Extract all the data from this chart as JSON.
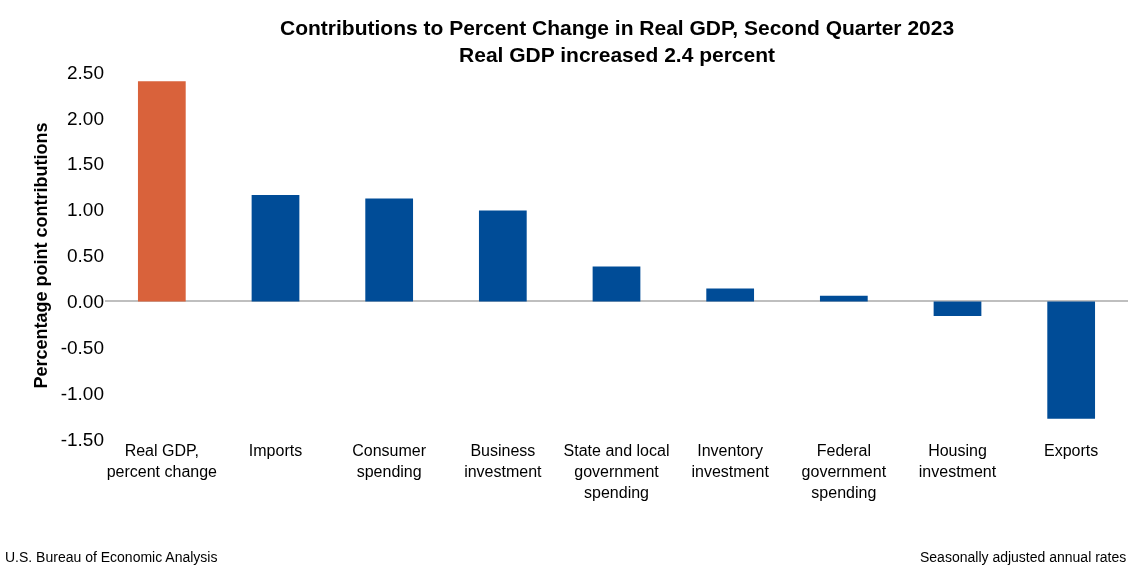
{
  "chart_data": {
    "type": "bar",
    "title": "Contributions to Percent Change in Real GDP, Second Quarter 2023",
    "subtitle": "Real GDP increased 2.4 percent",
    "ylabel": "Percentage point contributions",
    "categories": [
      "Real GDP, percent change",
      "Imports",
      "Consumer spending",
      "Business investment",
      "State and local government spending",
      "Inventory investment",
      "Federal government spending",
      "Housing investment",
      "Exports"
    ],
    "values": [
      2.4,
      1.16,
      1.12,
      0.99,
      0.38,
      0.14,
      0.06,
      -0.16,
      -1.28
    ],
    "colors": [
      "#d9623b",
      "#004c97",
      "#004c97",
      "#004c97",
      "#004c97",
      "#004c97",
      "#004c97",
      "#004c97",
      "#004c97"
    ],
    "ylim": [
      -1.5,
      2.5
    ],
    "yticks": [
      {
        "value": -1.5,
        "label": "-1.50"
      },
      {
        "value": -1,
        "label": "-1.00"
      },
      {
        "value": -0.5,
        "label": "-0.50"
      },
      {
        "value": 0,
        "label": "0.00"
      },
      {
        "value": 0.5,
        "label": "0.50"
      },
      {
        "value": 1,
        "label": "1.00"
      },
      {
        "value": 1.5,
        "label": "1.50"
      },
      {
        "value": 2,
        "label": "2.00"
      },
      {
        "value": 2.5,
        "label": "2.50"
      }
    ],
    "annotations": [
      "U.S. Bureau of Economic Analysis",
      "Seasonally adjusted annual rates"
    ]
  }
}
